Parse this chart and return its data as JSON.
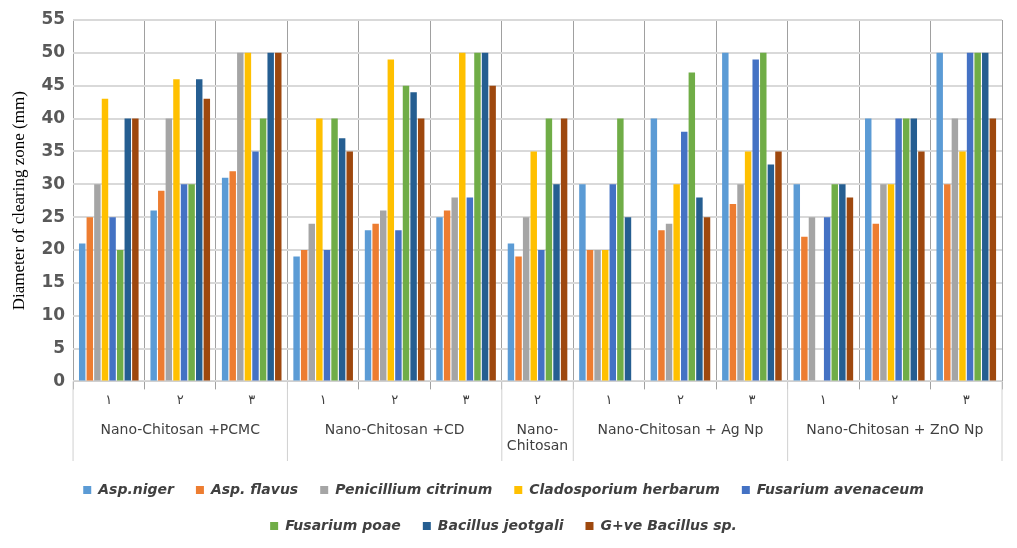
{
  "chart_data": {
    "type": "bar",
    "ylabel": "Diameter of clearing zone (mm)",
    "categories": [
      "١",
      "٢",
      "٣",
      "١",
      "٢",
      "٣",
      "٢",
      "١",
      "٢",
      "٣",
      "١",
      "٢",
      "٣"
    ],
    "annotations": [
      "Nano-Chitosan +PCMC",
      "Nano-Chitosan +CD",
      "Nano-Chitosan",
      "Nano-Chitosan + Ag Np",
      "Nano-Chitosan + ZnO Np"
    ],
    "ylim": [
      0,
      55
    ],
    "yticks": [
      0,
      5,
      10,
      15,
      20,
      25,
      30,
      35,
      40,
      45,
      50,
      55
    ],
    "grid": true,
    "legend": "bottom",
    "series": [
      {
        "name": "Asp.niger",
        "color": "#5b9bd5",
        "values": [
          21,
          26,
          31,
          19,
          23,
          25,
          21,
          30,
          40,
          50,
          30,
          40,
          50
        ]
      },
      {
        "name": "Asp. flavus",
        "color": "#ed7d31",
        "values": [
          25,
          29,
          32,
          20,
          24,
          26,
          19,
          20,
          23,
          27,
          22,
          24,
          30
        ]
      },
      {
        "name": "Penicillium citrinum",
        "color": "#a5a5a5",
        "values": [
          30,
          40,
          50,
          24,
          26,
          28,
          25,
          20,
          24,
          30,
          25,
          30,
          40
        ]
      },
      {
        "name": "Cladosporium herbarum",
        "color": "#ffc000",
        "values": [
          43,
          46,
          50,
          40,
          49,
          50,
          35,
          20,
          30,
          35,
          null,
          30,
          35
        ]
      },
      {
        "name": "Fusarium avenaceum",
        "color": "#4472c4",
        "values": [
          25,
          30,
          35,
          20,
          23,
          28,
          20,
          30,
          38,
          49,
          25,
          40,
          50
        ]
      },
      {
        "name": "Fusarium poae",
        "color": "#70ad47",
        "values": [
          20,
          30,
          40,
          40,
          45,
          50,
          40,
          40,
          47,
          50,
          30,
          40,
          50
        ]
      },
      {
        "name": "Bacillus jeotgali",
        "color": "#255e91",
        "values": [
          40,
          46,
          50,
          37,
          44,
          50,
          30,
          25,
          28,
          33,
          30,
          40,
          50
        ]
      },
      {
        "name": "G+ve Bacillus sp.",
        "color": "#9e480e",
        "values": [
          40,
          43,
          50,
          35,
          40,
          45,
          40,
          null,
          25,
          35,
          28,
          35,
          40
        ]
      }
    ]
  }
}
